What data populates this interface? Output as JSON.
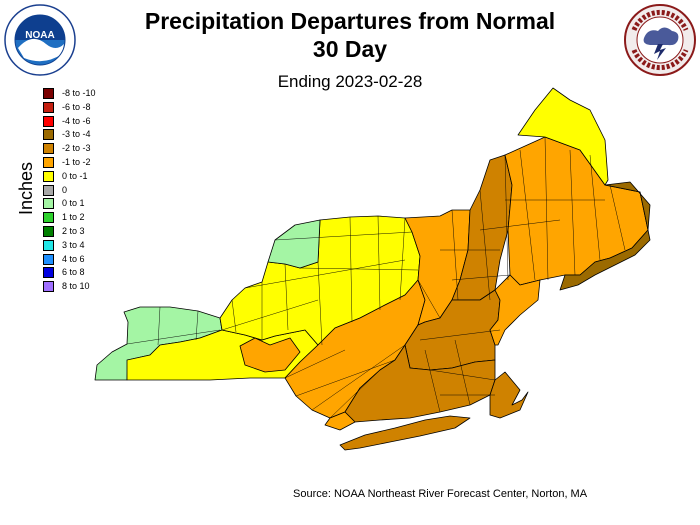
{
  "title_line1": "Precipitation Departures from Normal",
  "title_line2": "30 Day",
  "subtitle": "Ending 2023-02-28",
  "legend_title": "Inches",
  "legend": [
    {
      "label": "-8 to -10",
      "color": "#7a0000"
    },
    {
      "label": "-6 to -8",
      "color": "#c41f10"
    },
    {
      "label": "-4 to -6",
      "color": "#ff0000"
    },
    {
      "label": "-3 to -4",
      "color": "#9b6a00"
    },
    {
      "label": "-2 to -3",
      "color": "#cf8200"
    },
    {
      "label": "-1 to -2",
      "color": "#ffa500"
    },
    {
      "label": "0 to -1",
      "color": "#ffff00"
    },
    {
      "label": "0",
      "color": "#a8a8a8"
    },
    {
      "label": "0 to 1",
      "color": "#a4f5a4"
    },
    {
      "label": "1 to 2",
      "color": "#2ed22e"
    },
    {
      "label": "2 to 3",
      "color": "#008000"
    },
    {
      "label": "3 to 4",
      "color": "#22e6e6"
    },
    {
      "label": "4 to 6",
      "color": "#1e90ff"
    },
    {
      "label": "6 to 8",
      "color": "#0000e0"
    },
    {
      "label": "8 to 10",
      "color": "#a070ff"
    }
  ],
  "source": "Source: NOAA Northeast River Forecast Center, Norton, MA",
  "logos": {
    "left": {
      "icon": "noaa-logo",
      "text": "NATIONAL OCEANIC AND ATMOSPHERIC ADMINISTRATION · U.S. DEPARTMENT OF COMMERCE",
      "center": "NOAA"
    },
    "right": {
      "icon": "national-weather-service-logo",
      "text": "NATIONAL WEATHER SERVICE"
    }
  },
  "map": {
    "region": "Northeast United States",
    "counties_boundaries": true,
    "colors": {
      "outline": "#000000"
    }
  }
}
